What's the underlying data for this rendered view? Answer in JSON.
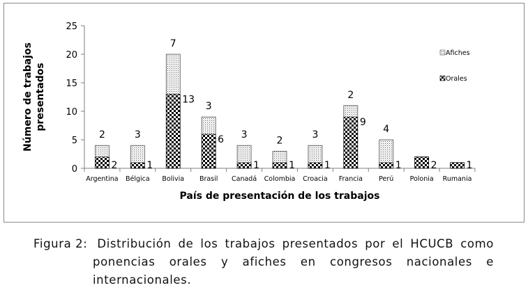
{
  "chart_data": {
    "type": "bar",
    "stacked": true,
    "categories": [
      "Argentina",
      "Bélgica",
      "Bolivia",
      "Brasil",
      "Canadá",
      "Colombia",
      "Croacia",
      "Francia",
      "Perú",
      "Polonia",
      "Rumania"
    ],
    "series": [
      {
        "name": "Orales",
        "values": [
          2,
          1,
          13,
          6,
          1,
          1,
          1,
          9,
          1,
          2,
          1
        ],
        "pattern": "checkerboard"
      },
      {
        "name": "Afiches",
        "values": [
          2,
          3,
          7,
          3,
          3,
          2,
          3,
          2,
          4,
          0,
          0
        ],
        "pattern": "dotted"
      }
    ],
    "data_labels": {
      "Orales": [
        "2",
        "1",
        "13",
        "6",
        "1",
        "1",
        "1",
        "9",
        "1",
        "2",
        "1"
      ],
      "Afiches": [
        "2",
        "3",
        "7",
        "3",
        "3",
        "2",
        "3",
        "2",
        "4",
        "",
        ""
      ]
    },
    "yticks": [
      "0",
      "5",
      "10",
      "15",
      "20",
      "25"
    ],
    "ylim": [
      0,
      25
    ],
    "xlabel": "País de presentación de los trabajos",
    "ylabel": "Número de trabajos presentados",
    "legend": [
      "Afiches",
      "Orales"
    ],
    "legend_position": "right",
    "grid": false
  },
  "caption": {
    "label": "Figura 2:",
    "line1": "Distribución de los trabajos presentados por el HCUCB como",
    "line2": "ponencias orales y afiches en congresos nacionales e",
    "line3": "internacionales."
  }
}
